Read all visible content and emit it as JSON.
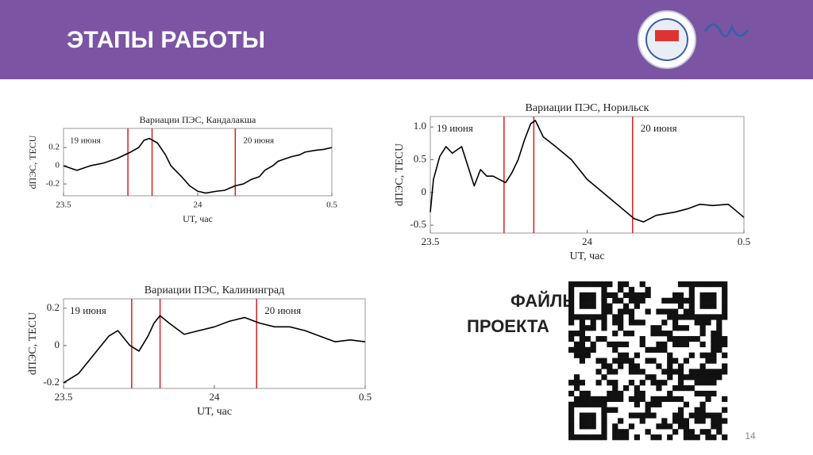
{
  "header": {
    "title": "ЭТАПЫ РАБОТЫ"
  },
  "qr_label": [
    "ФАЙЛЫ",
    "ПРОЕКТА"
  ],
  "page_number": "14",
  "chart_data": [
    {
      "type": "line",
      "title": "Вариации ПЭС, Кандалакша",
      "x_label": "UT, час",
      "y_label": "dПЭС, TECU",
      "color": "#000000",
      "xlim": [
        23.5,
        24.5
      ],
      "xticks": [
        23.5,
        24,
        {
          "value": 24.5,
          "label": "0.5"
        }
      ],
      "ylim": [
        -0.33,
        0.41
      ],
      "yticks": [
        0.2,
        0,
        -0.2
      ],
      "x": [
        23.5,
        23.55,
        23.6,
        23.65,
        23.7,
        23.75,
        23.78,
        23.8,
        23.82,
        23.85,
        23.88,
        23.9,
        23.94,
        23.97,
        24.0,
        24.03,
        24.07,
        24.1,
        24.14,
        24.17,
        24.2,
        24.23,
        24.25,
        24.28,
        24.3,
        24.33,
        24.35,
        24.38,
        24.4,
        24.44,
        24.47,
        24.5
      ],
      "values": [
        0.0,
        -0.05,
        0.0,
        0.03,
        0.08,
        0.15,
        0.2,
        0.28,
        0.3,
        0.25,
        0.12,
        0.0,
        -0.12,
        -0.22,
        -0.28,
        -0.3,
        -0.28,
        -0.27,
        -0.22,
        -0.2,
        -0.15,
        -0.12,
        -0.05,
        0.0,
        0.05,
        0.08,
        0.1,
        0.12,
        0.15,
        0.17,
        0.18,
        0.2
      ],
      "vlines": [
        23.74,
        23.83,
        24.14
      ],
      "annotations": [
        "19 июня",
        "20 июня"
      ]
    },
    {
      "type": "line",
      "title": "Вариации ПЭС, Норильск",
      "x_label": "UT, час",
      "y_label": "dПЭС, TECU",
      "color": "#000000",
      "xlim": [
        23.5,
        24.5
      ],
      "xticks": [
        23.5,
        24,
        {
          "value": 24.5,
          "label": "0.5"
        }
      ],
      "ylim": [
        -0.62,
        1.16
      ],
      "yticks": [
        {
          "value": 1,
          "label": "1.0"
        },
        0.5,
        0,
        -0.5
      ],
      "x": [
        23.5,
        23.51,
        23.53,
        23.55,
        23.57,
        23.6,
        23.62,
        23.64,
        23.66,
        23.68,
        23.7,
        23.72,
        23.74,
        23.76,
        23.78,
        23.8,
        23.82,
        23.835,
        23.86,
        23.9,
        23.95,
        24.0,
        24.05,
        24.1,
        24.15,
        24.18,
        24.22,
        24.28,
        24.32,
        24.36,
        24.4,
        24.45,
        24.48,
        24.5
      ],
      "values": [
        -0.3,
        0.2,
        0.55,
        0.7,
        0.6,
        0.7,
        0.4,
        0.1,
        0.35,
        0.25,
        0.25,
        0.2,
        0.15,
        0.3,
        0.5,
        0.8,
        1.05,
        1.1,
        0.85,
        0.7,
        0.5,
        0.2,
        0.0,
        -0.2,
        -0.4,
        -0.45,
        -0.35,
        -0.3,
        -0.25,
        -0.18,
        -0.2,
        -0.18,
        -0.3,
        -0.38
      ],
      "vlines": [
        23.735,
        23.83,
        24.145
      ],
      "annotations": [
        "19 июня",
        "20 июня"
      ]
    },
    {
      "type": "line",
      "title": "Вариации ПЭС, Калининград",
      "x_label": "UT, час",
      "y_label": "dПЭС, TECU",
      "color": "#000000",
      "xlim": [
        23.5,
        24.5
      ],
      "xticks": [
        23.5,
        24,
        {
          "value": 24.5,
          "label": "0.5"
        }
      ],
      "ylim": [
        -0.23,
        0.25
      ],
      "yticks": [
        0.2,
        0,
        -0.2
      ],
      "x": [
        23.5,
        23.55,
        23.6,
        23.65,
        23.68,
        23.72,
        23.75,
        23.78,
        23.8,
        23.82,
        23.85,
        23.9,
        23.95,
        24.0,
        24.05,
        24.1,
        24.15,
        24.2,
        24.25,
        24.3,
        24.35,
        24.4,
        24.45,
        24.5
      ],
      "values": [
        -0.2,
        -0.15,
        -0.05,
        0.05,
        0.08,
        0.0,
        -0.03,
        0.05,
        0.12,
        0.16,
        0.12,
        0.06,
        0.08,
        0.1,
        0.13,
        0.15,
        0.12,
        0.1,
        0.1,
        0.08,
        0.05,
        0.02,
        0.03,
        0.02
      ],
      "vlines": [
        23.726,
        23.82,
        24.14
      ],
      "annotations": [
        "19 июня",
        "20 июня"
      ]
    }
  ]
}
